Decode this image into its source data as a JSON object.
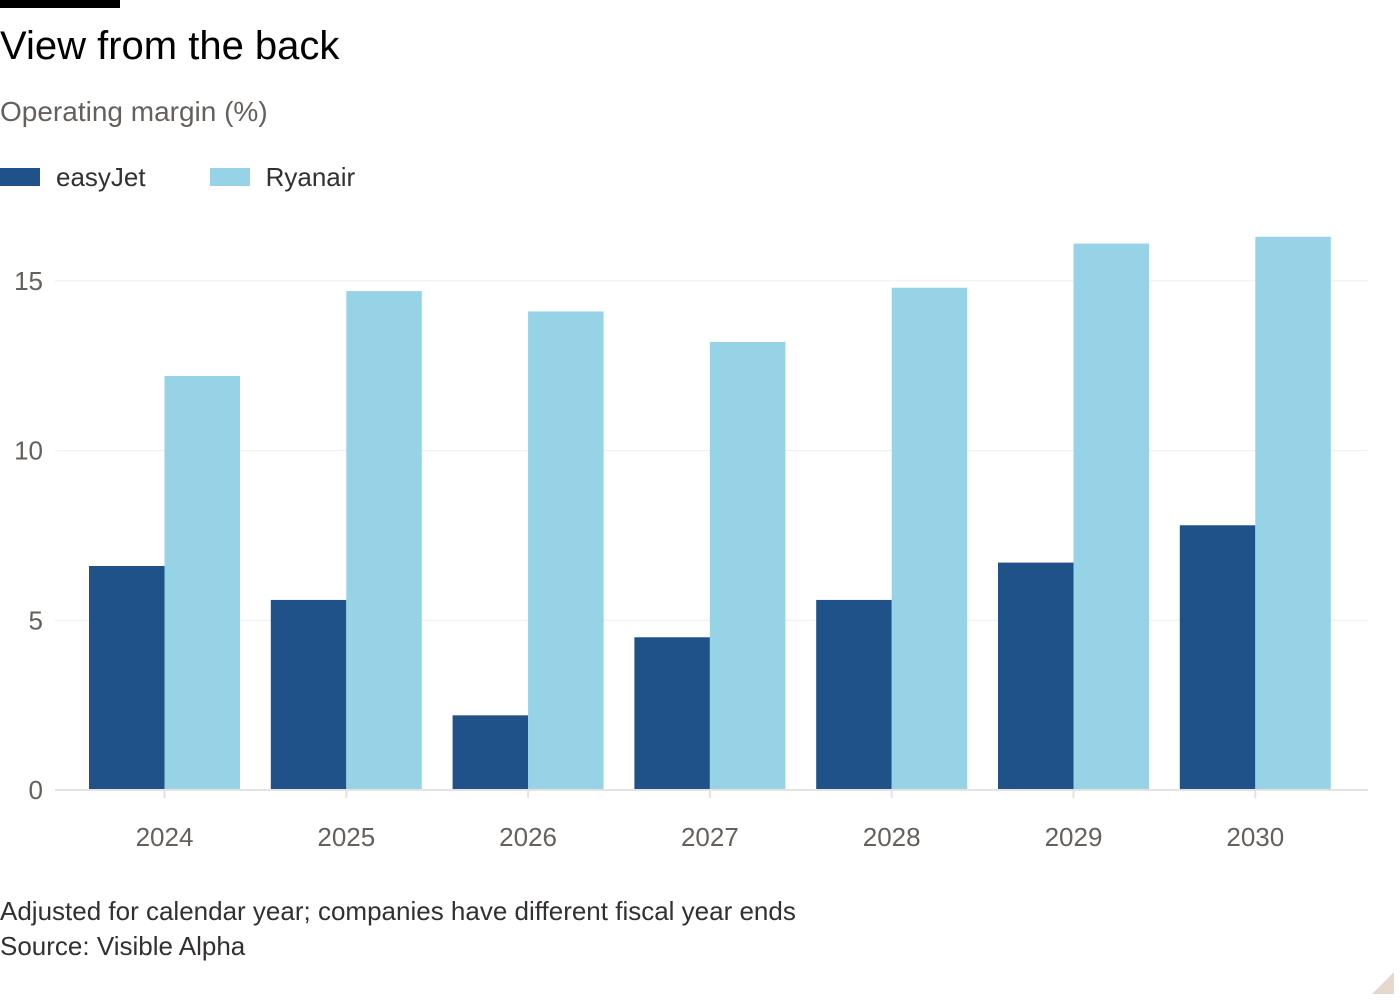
{
  "header": {
    "title": "View from the back",
    "subtitle": "Operating margin (%)"
  },
  "legend": {
    "items": [
      {
        "label": "easyJet",
        "color": "#1f5289"
      },
      {
        "label": "Ryanair",
        "color": "#96d3e6"
      }
    ]
  },
  "footer": {
    "note": "Adjusted for calendar year; companies have different fiscal year ends",
    "source": "Source: Visible Alpha"
  },
  "chart_data": {
    "type": "bar",
    "categories": [
      "2024",
      "2025",
      "2026",
      "2027",
      "2028",
      "2029",
      "2030"
    ],
    "series": [
      {
        "name": "easyJet",
        "color": "#1f5289",
        "values": [
          6.6,
          5.6,
          2.2,
          4.5,
          5.6,
          6.7,
          7.8
        ]
      },
      {
        "name": "Ryanair",
        "color": "#96d3e6",
        "values": [
          12.2,
          14.7,
          14.1,
          13.2,
          14.8,
          16.1,
          16.3
        ]
      }
    ],
    "title": "View from the back",
    "subtitle": "Operating margin (%)",
    "ylim": [
      0,
      16.5
    ],
    "yticks": [
      0,
      5,
      10,
      15
    ],
    "ytick_labels": [
      "0",
      "5",
      "10",
      "15"
    ],
    "grid": true,
    "legend_position": "top-left",
    "colors": {
      "grid": "#f0eeec",
      "axis": "#e6e2df",
      "tick_label": "#66605c"
    }
  }
}
